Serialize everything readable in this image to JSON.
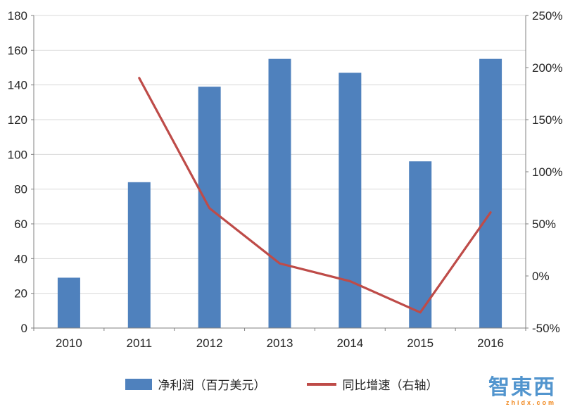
{
  "chart_data": {
    "type": "combo",
    "title": "",
    "xlabel": "",
    "ylabel": "",
    "categories": [
      "2010",
      "2011",
      "2012",
      "2013",
      "2014",
      "2015",
      "2016"
    ],
    "series": [
      {
        "name": "净利润（百万美元）",
        "type": "bar",
        "axis": "left",
        "color": "#4F81BD",
        "values": [
          29,
          84,
          139,
          155,
          147,
          96,
          155
        ]
      },
      {
        "name": "同比增速（右轴）",
        "type": "line",
        "axis": "right",
        "color": "#BE4B48",
        "values": [
          null,
          190,
          65,
          12,
          -5,
          -35,
          61
        ]
      }
    ],
    "left_axis": {
      "min": 0,
      "max": 180,
      "step": 20,
      "ticks": [
        "0",
        "20",
        "40",
        "60",
        "80",
        "100",
        "120",
        "140",
        "160",
        "180"
      ]
    },
    "right_axis": {
      "min": -50,
      "max": 250,
      "step": 50,
      "ticks": [
        "-50%",
        "0%",
        "50%",
        "100%",
        "150%",
        "200%",
        "250%"
      ]
    },
    "grid": true,
    "legend_position": "bottom",
    "gridline_color": "#d9d9d9",
    "axis_color": "#808080",
    "label_color": "#262626"
  },
  "watermark": {
    "brand": "智東西",
    "domain": "zhidx.com"
  }
}
